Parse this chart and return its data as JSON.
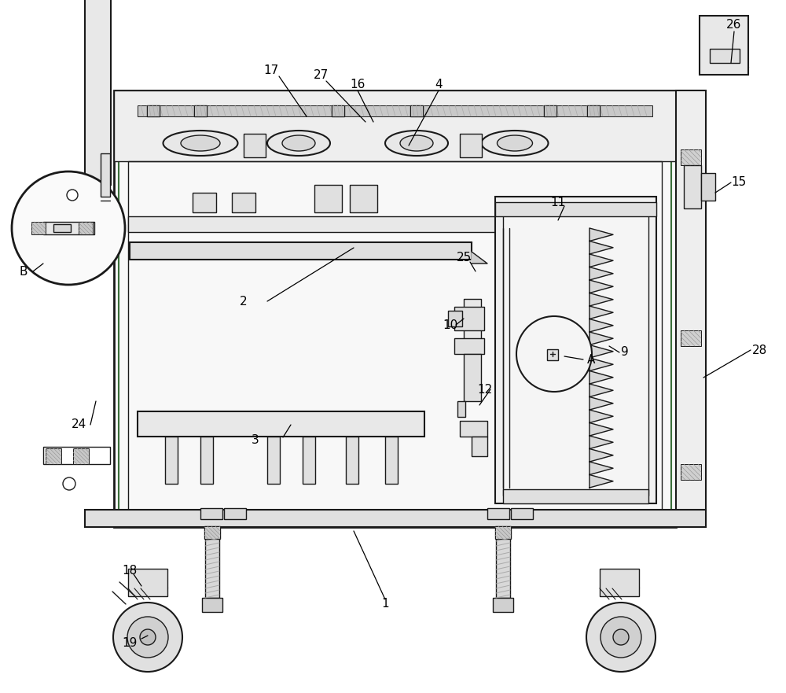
{
  "bg_color": "#ffffff",
  "line_color": "#1a1a1a",
  "green_color": "#3a6e3a",
  "gray_light": "#f0f0f0",
  "gray_mid": "#e0e0e0",
  "gray_dark": "#c8c8c8",
  "hatch_color": "#888888"
}
